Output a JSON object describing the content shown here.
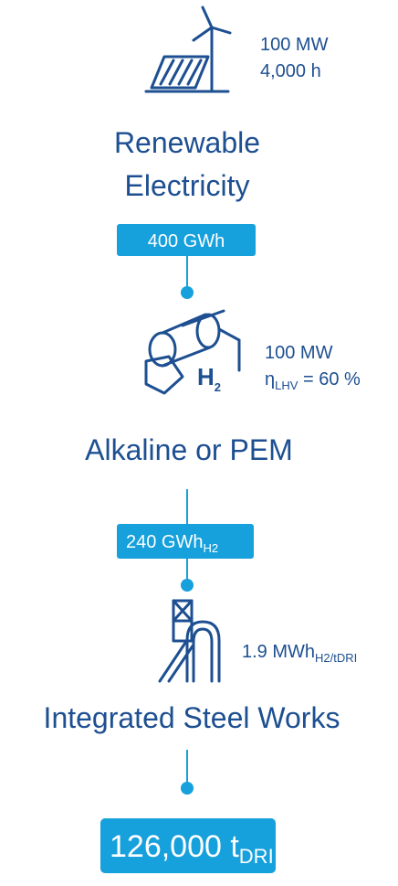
{
  "stages": [
    {
      "label_lines": [
        "Renewable",
        "Electricity"
      ],
      "specs": [
        {
          "text": "100 MW"
        },
        {
          "text": "4,000 h"
        }
      ]
    },
    {
      "label_lines": [
        "Alkaline or PEM"
      ],
      "icon_text": "H",
      "icon_sub": "2",
      "specs": [
        {
          "text": "100 MW"
        },
        {
          "text": "η",
          "sub": "LHV",
          "after": " = 60 %"
        }
      ]
    },
    {
      "label_lines": [
        "Integrated Steel Works"
      ],
      "specs": [
        {
          "text": "1.9 MWh",
          "sub": "H2/tDRI"
        }
      ]
    }
  ],
  "flows": [
    {
      "text": "400 GWh"
    },
    {
      "text": "240 GWh",
      "sub": "H2"
    },
    {
      "text": "126,000 t",
      "sub": "DRI"
    }
  ]
}
